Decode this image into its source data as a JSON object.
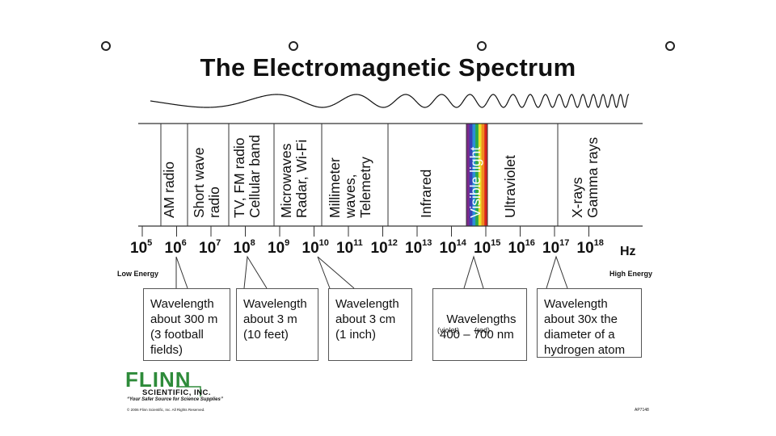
{
  "title": "The Electromagnetic Spectrum",
  "bands": [
    {
      "name": "AM radio"
    },
    {
      "name": "Short wave\nradio"
    },
    {
      "name": "TV, FM radio\nCellular band"
    },
    {
      "name": "Microwaves\nRadar, Wi-Fi"
    },
    {
      "name": "Millimeter\nwaves,\nTelemetry"
    },
    {
      "name": "Infrared"
    },
    {
      "name": "Visible light"
    },
    {
      "name": "Ultraviolet"
    },
    {
      "name": "X-rays\nGamma rays"
    }
  ],
  "frequency_axis": {
    "base": "10",
    "exponents": [
      "5",
      "6",
      "7",
      "8",
      "9",
      "10",
      "11",
      "12",
      "13",
      "14",
      "15",
      "16",
      "17",
      "18"
    ],
    "unit": "Hz",
    "low_label": "Low Energy",
    "high_label": "High Energy"
  },
  "callouts": [
    {
      "text": "Wavelength\nabout 300 m\n(3 football\nfields)"
    },
    {
      "text": "Wavelength\nabout 3 m\n(10 feet)"
    },
    {
      "text": "Wavelength\nabout 3 cm\n(1 inch)"
    },
    {
      "text": "Wavelengths\n400 – 700 nm",
      "sub_left": "(violet)",
      "sub_right": "(red)"
    },
    {
      "text": "Wavelength\nabout 30x the\ndiameter of a\nhydrogen atom"
    }
  ],
  "branding": {
    "logo": "FLINN",
    "company": "SCIENTIFIC, INC.",
    "tagline": "“Your Safer Source for Science Supplies”",
    "copyright": "© 2006 Flinn Scientific, Inc. All Rights Reserved.",
    "code": "AP7148"
  },
  "colors": {
    "spectrum": [
      "#7b2a8c",
      "#3b3fb5",
      "#2a8fd6",
      "#2aa84a",
      "#e8e02a",
      "#f08a1e",
      "#d8231f"
    ],
    "logo_green": "#2e8b3a"
  }
}
